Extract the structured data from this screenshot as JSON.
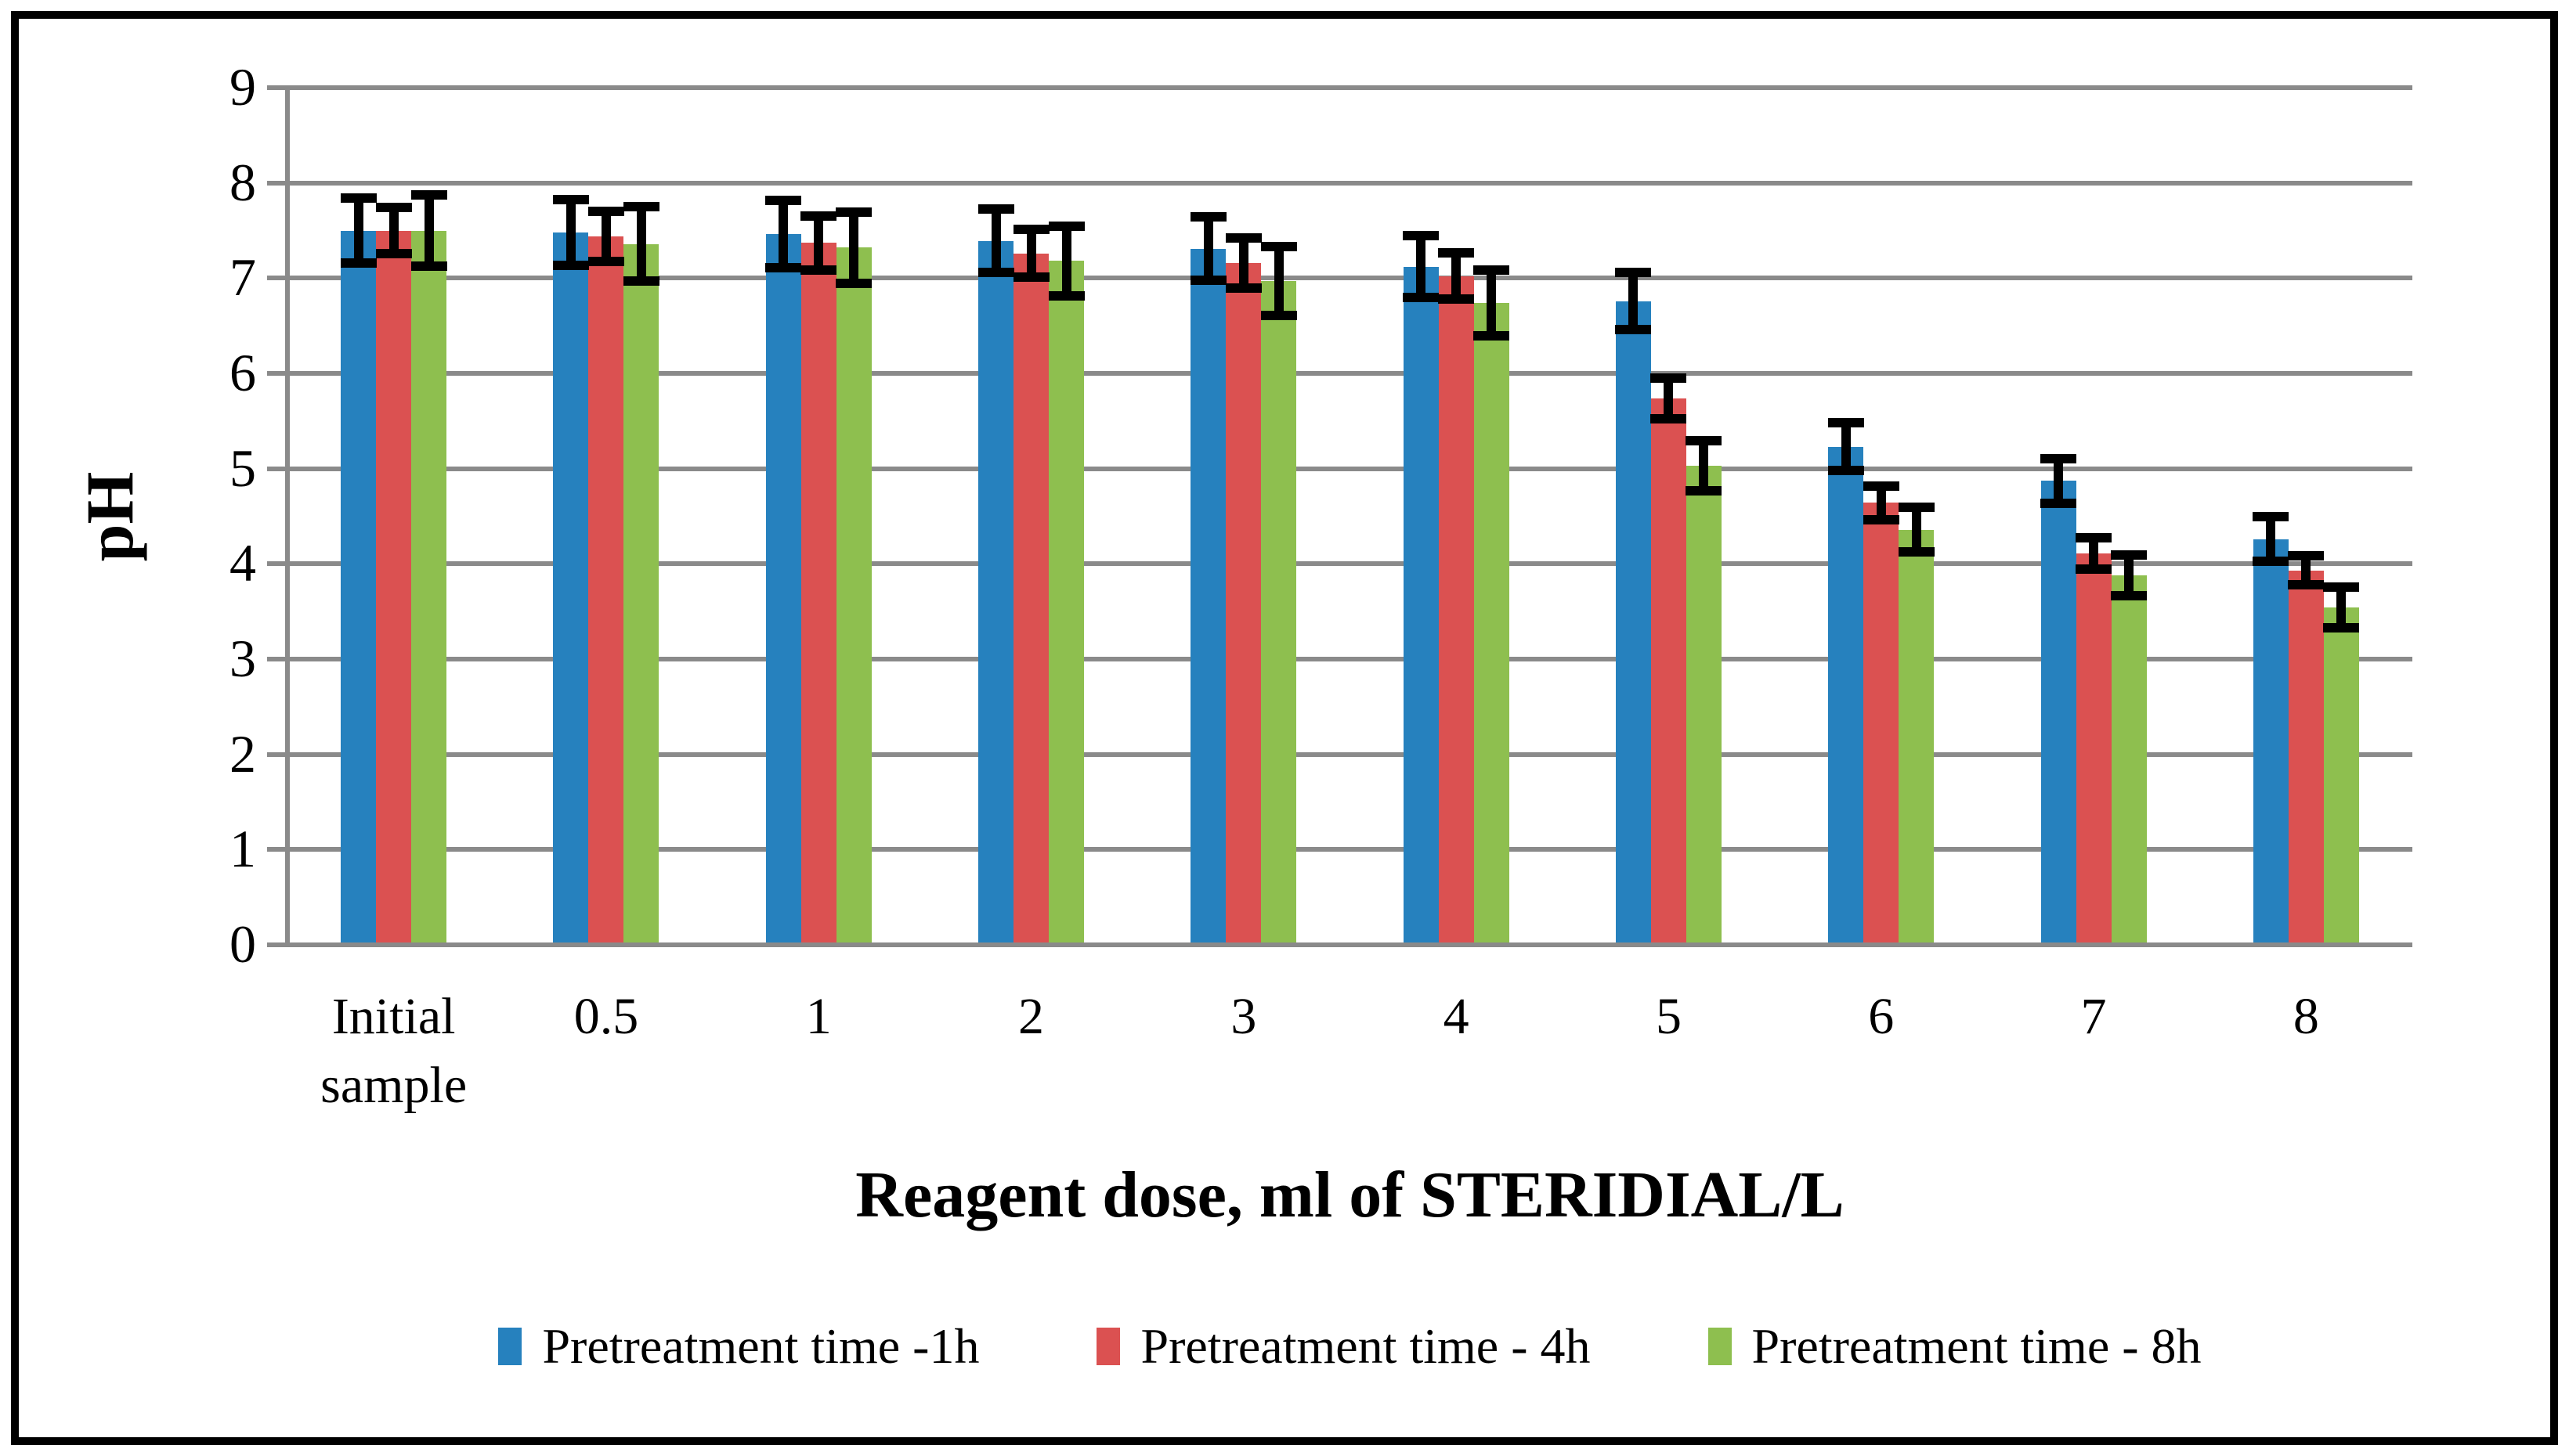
{
  "chart_data": {
    "type": "bar",
    "title": "",
    "xlabel": "Reagent dose, ml of STERIDIAL/L",
    "ylabel": "pH",
    "ylim": [
      0,
      9
    ],
    "yticks": [
      0,
      1,
      2,
      3,
      4,
      5,
      6,
      7,
      8,
      9
    ],
    "grid": true,
    "legend_position": "bottom",
    "gridline_color": "#8a8a8a",
    "axis_color": "#8a8a8a",
    "error_bar_color": "#000000",
    "categories": [
      "Initial sample",
      "0.5",
      "1",
      "2",
      "3",
      "4",
      "5",
      "6",
      "7",
      "8"
    ],
    "series": [
      {
        "name": "Pretreatment time -1h",
        "color": "#2681BE",
        "values": [
          7.5,
          7.48,
          7.46,
          7.39,
          7.31,
          7.12,
          6.76,
          5.23,
          4.87,
          4.26
        ],
        "errors": [
          0.31,
          0.31,
          0.32,
          0.3,
          0.3,
          0.29,
          0.27,
          0.22,
          0.2,
          0.2
        ]
      },
      {
        "name": "Pretreatment time - 4h",
        "color": "#DB5151",
        "values": [
          7.5,
          7.44,
          7.37,
          7.26,
          7.16,
          7.02,
          5.74,
          4.64,
          4.11,
          3.93
        ],
        "errors": [
          0.21,
          0.23,
          0.25,
          0.22,
          0.23,
          0.21,
          0.18,
          0.14,
          0.13,
          0.12
        ]
      },
      {
        "name": "Pretreatment time - 8h",
        "color": "#8EBF4F",
        "values": [
          7.5,
          7.36,
          7.32,
          7.18,
          6.97,
          6.74,
          5.03,
          4.36,
          3.88,
          3.54
        ],
        "errors": [
          0.34,
          0.36,
          0.34,
          0.33,
          0.33,
          0.31,
          0.23,
          0.2,
          0.18,
          0.18
        ]
      }
    ]
  }
}
